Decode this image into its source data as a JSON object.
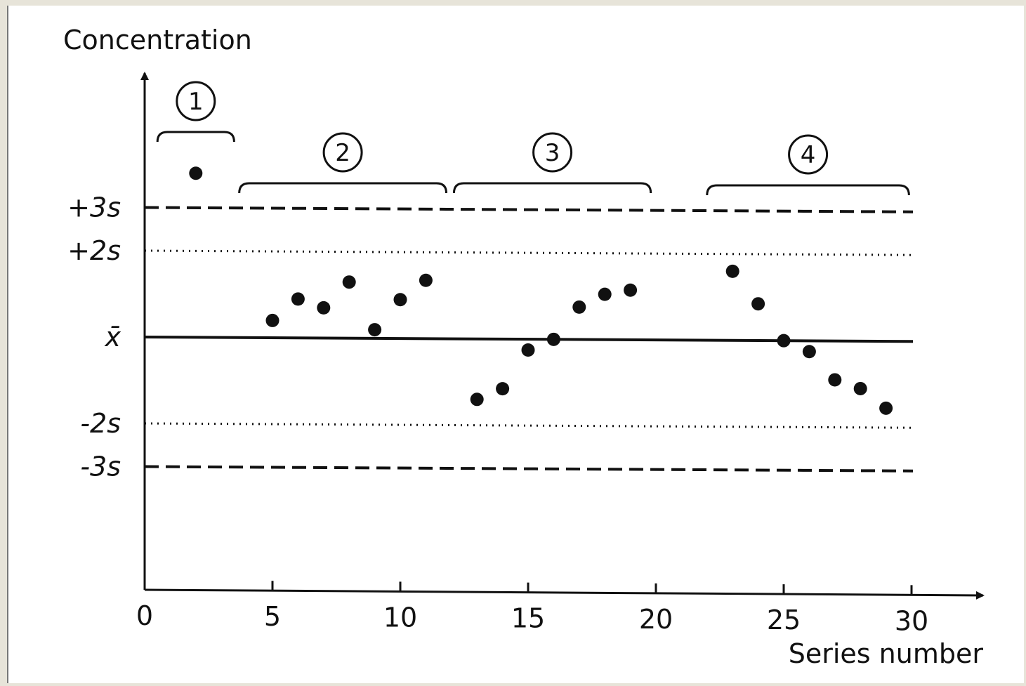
{
  "chart_data": {
    "type": "scatter",
    "ylabel": "Concentration",
    "xlabel": "Series number",
    "xlim": [
      0,
      30
    ],
    "x_ticks": [
      0,
      5,
      10,
      15,
      20,
      25,
      30
    ],
    "x_tick_labels": [
      "0",
      "5",
      "10",
      "15",
      "20",
      "25",
      "30"
    ],
    "y_unit": "s (standard deviations from mean)",
    "reference_lines": [
      {
        "label": "+3s",
        "value": 3,
        "style": "dashed"
      },
      {
        "label": "+2s",
        "value": 2,
        "style": "dotted"
      },
      {
        "label": "x̄",
        "value": 0,
        "style": "solid"
      },
      {
        "label": "-2s",
        "value": -2,
        "style": "dotted"
      },
      {
        "label": "-3s",
        "value": -3,
        "style": "dashed"
      }
    ],
    "points": [
      {
        "x": 2,
        "y": 3.8
      },
      {
        "x": 5,
        "y": 0.4
      },
      {
        "x": 6,
        "y": 0.9
      },
      {
        "x": 7,
        "y": 0.7
      },
      {
        "x": 8,
        "y": 1.3
      },
      {
        "x": 9,
        "y": 0.2
      },
      {
        "x": 10,
        "y": 0.9
      },
      {
        "x": 11,
        "y": 1.35
      },
      {
        "x": 13,
        "y": -1.4
      },
      {
        "x": 14,
        "y": -1.15
      },
      {
        "x": 15,
        "y": -0.25
      },
      {
        "x": 16,
        "y": 0.0
      },
      {
        "x": 17,
        "y": 0.75
      },
      {
        "x": 18,
        "y": 1.05
      },
      {
        "x": 19,
        "y": 1.15
      },
      {
        "x": 23,
        "y": 1.6
      },
      {
        "x": 24,
        "y": 0.85
      },
      {
        "x": 25,
        "y": 0.0
      },
      {
        "x": 26,
        "y": -0.25
      },
      {
        "x": 27,
        "y": -0.9
      },
      {
        "x": 28,
        "y": -1.1
      },
      {
        "x": 29,
        "y": -1.55
      }
    ],
    "groups": [
      {
        "label": "1",
        "x_start": 0.5,
        "x_end": 3.5
      },
      {
        "label": "2",
        "x_start": 3.7,
        "x_end": 11.8
      },
      {
        "label": "3",
        "x_start": 12.1,
        "x_end": 19.8
      },
      {
        "label": "4",
        "x_start": 22.0,
        "x_end": 29.9
      }
    ],
    "grid": false,
    "legend": "none"
  }
}
